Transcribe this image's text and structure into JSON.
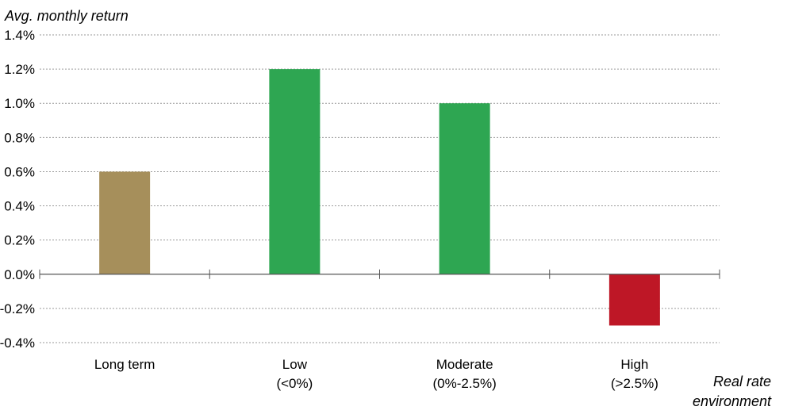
{
  "chart_data": {
    "type": "bar",
    "categories": [
      [
        "Long term"
      ],
      [
        "Low",
        "(<0%)"
      ],
      [
        "Moderate",
        "(0%-2.5%)"
      ],
      [
        "High",
        "(>2.5%)"
      ]
    ],
    "values": [
      0.6,
      1.2,
      1.0,
      -0.3
    ],
    "bar_colors": [
      "#A68F5B",
      "#2EA652",
      "#2EA652",
      "#BE1726"
    ],
    "ylabel": "Avg. monthly return",
    "xlabel": [
      "Real rate",
      "environment"
    ],
    "ylim": [
      -0.4,
      1.4
    ],
    "ytick_step": 0.2,
    "ytick_format": "percent-1dp",
    "grid": "horizontal-dotted",
    "gridline_color": "#9a9a9a",
    "axis_color": "#555555"
  }
}
